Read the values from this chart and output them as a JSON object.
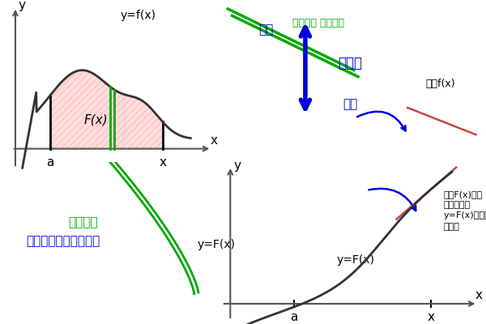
{
  "bg_color": "#ffffff",
  "upper_left": {
    "label_yfx": "y=f(x)",
    "label_y": "y",
    "label_x": "x",
    "label_a": "a",
    "label_Fx": "F(x)",
    "curve_color": "#333333",
    "fill_color": "#ff4444",
    "fill_alpha": 0.18,
    "hatch_color": "#ff4444",
    "vline_color": "#000000",
    "axis_color": "#555555",
    "green_color": "#00aa00"
  },
  "upper_right": {
    "green_color": "#00aa00",
    "blue_color": "#0000dd",
    "black_color": "#111111",
    "label_onaji_moto": "同じ数量 元に戻る",
    "label_gyakuenzan": "逆演算",
    "label_sekibun": "積分",
    "label_bibun": "微分",
    "label_katamuki": "傾きf(x)"
  },
  "lower_left": {
    "green_color": "#00aa00",
    "blue_color": "#0000dd",
    "label_onaji": "同じ数量",
    "label_teisuu": "定数を除いて元に戻る",
    "label_yFx": "y=F(x)"
  },
  "lower_right": {
    "label_yFx": "y=F(x)",
    "label_y": "y",
    "label_x": "x",
    "label_a": "a",
    "curve_color": "#333333",
    "tangent_color": "#cc4444",
    "axis_color": "#555555",
    "note_text": "面積F(x)を別\n座標に曲線\ny=F(x)として\n描く。"
  }
}
